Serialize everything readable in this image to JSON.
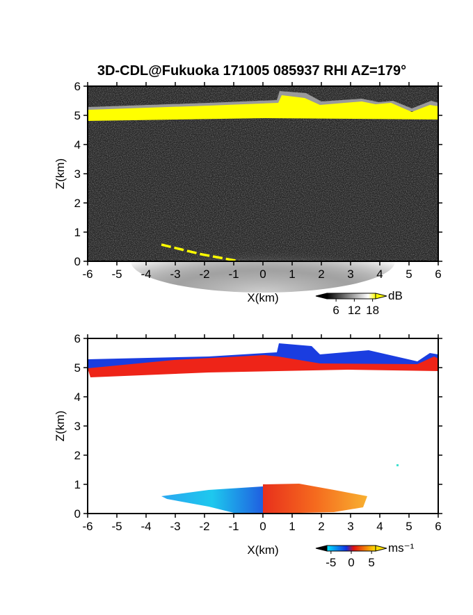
{
  "chart_data": [
    {
      "type": "heatmap",
      "title": "3D-CDL@Fukuoka 171005 085937 RHI AZ=179°",
      "xlabel": "X(km)",
      "ylabel": "Z(km)",
      "xlim": [
        -6,
        6
      ],
      "ylim": [
        0,
        6
      ],
      "xticks": [
        -6,
        -5,
        -4,
        -3,
        -2,
        -1,
        0,
        1,
        2,
        3,
        4,
        5,
        6
      ],
      "yticks": [
        0,
        1,
        2,
        3,
        4,
        5,
        6
      ],
      "colorbar": {
        "label": "dB",
        "lim": [
          3,
          19
        ],
        "ticks": [
          6,
          12,
          18
        ]
      }
    },
    {
      "type": "heatmap",
      "xlabel": "X(km)",
      "ylabel": "Z(km)",
      "xlim": [
        -6,
        6
      ],
      "ylim": [
        0,
        6
      ],
      "xticks": [
        -6,
        -5,
        -4,
        -3,
        -2,
        -1,
        0,
        1,
        2,
        3,
        4,
        5,
        6
      ],
      "yticks": [
        0,
        1,
        2,
        3,
        4,
        5,
        6
      ],
      "colorbar": {
        "label": "ms⁻¹",
        "lim": [
          -6,
          6
        ],
        "ticks": [
          -5,
          0,
          5
        ]
      }
    }
  ]
}
